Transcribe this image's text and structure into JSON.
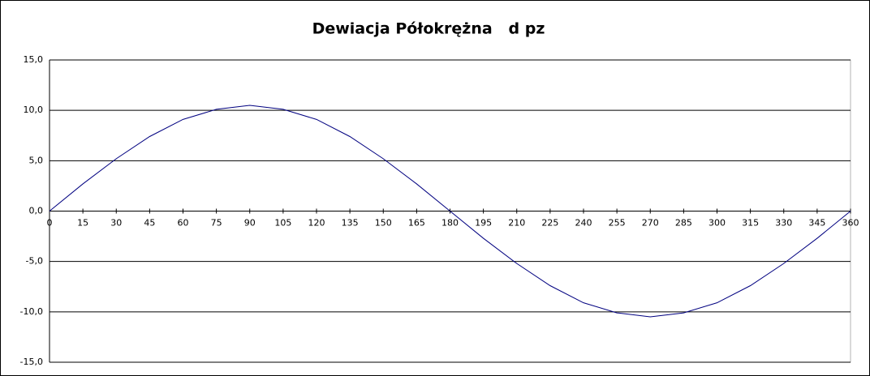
{
  "chart_data": {
    "type": "line",
    "title": "Dewiacja Półokrężna   d pz",
    "x": [
      0,
      15,
      30,
      45,
      60,
      75,
      90,
      105,
      120,
      135,
      150,
      165,
      180,
      195,
      210,
      225,
      240,
      255,
      270,
      285,
      300,
      315,
      330,
      345,
      360
    ],
    "values": [
      0,
      2.7,
      5.2,
      7.4,
      9.1,
      10.1,
      10.5,
      10.1,
      9.1,
      7.4,
      5.2,
      2.7,
      0,
      -2.7,
      -5.2,
      -7.4,
      -9.1,
      -10.1,
      -10.5,
      -10.1,
      -9.1,
      -7.4,
      -5.2,
      -2.7,
      0
    ],
    "color": "#000080",
    "xlim": [
      0,
      360
    ],
    "xticks": [
      0,
      15,
      30,
      45,
      60,
      75,
      90,
      105,
      120,
      135,
      150,
      165,
      180,
      195,
      210,
      225,
      240,
      255,
      270,
      285,
      300,
      315,
      330,
      345,
      360
    ],
    "ylim": [
      -15,
      15
    ],
    "yticks": [
      {
        "value": -15,
        "label": "-15,0"
      },
      {
        "value": -10,
        "label": "-10,0"
      },
      {
        "value": -5,
        "label": "-5,0"
      },
      {
        "value": 0,
        "label": "0,0"
      },
      {
        "value": 5,
        "label": "5,0"
      },
      {
        "value": 10,
        "label": "10,0"
      },
      {
        "value": 15,
        "label": "15,0"
      }
    ],
    "grid": true
  }
}
